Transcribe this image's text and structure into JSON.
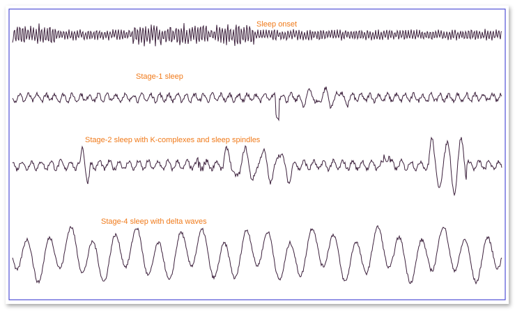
{
  "traces": [
    {
      "label": "Sleep onset"
    },
    {
      "label": "Stage-1 sleep"
    },
    {
      "label": "Stage-2 sleep with K-complexes and sleep spindles"
    },
    {
      "label": "Stage-4 sleep with delta waves"
    }
  ]
}
